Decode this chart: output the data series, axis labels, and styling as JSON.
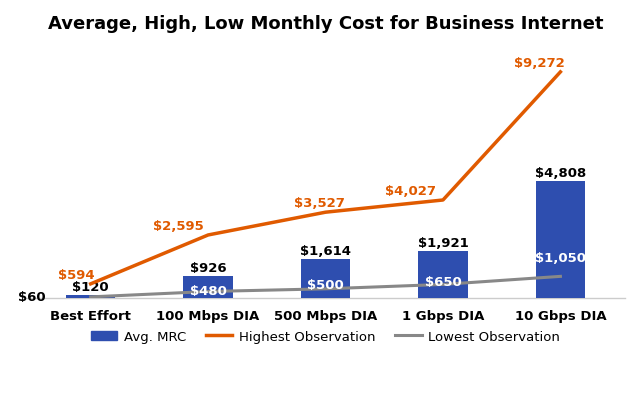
{
  "title": "Average, High, Low Monthly Cost for Business Internet",
  "categories": [
    "Best Effort",
    "100 Mbps DIA",
    "500 Mbps DIA",
    "1 Gbps DIA",
    "10 Gbps DIA"
  ],
  "bar_heights": [
    120,
    926,
    1614,
    1921,
    4808
  ],
  "bar_top_labels": [
    "$120",
    "$926",
    "$1,614",
    "$1,921",
    "$4,808"
  ],
  "bar_inner_labels": [
    "",
    "$480",
    "$500",
    "$650",
    "$1,050"
  ],
  "high_values": [
    594,
    2595,
    3527,
    4027,
    9272
  ],
  "high_labels": [
    "$594",
    "$2,595",
    "$3,527",
    "$4,027",
    "$9,272"
  ],
  "low_values": [
    60,
    280,
    390,
    570,
    900
  ],
  "low_label": "$60",
  "bar_color": "#2E4EAF",
  "high_color": "#E05A00",
  "low_color": "#888888",
  "title_fontsize": 13,
  "label_fontsize": 9.5,
  "inner_label_fontsize": 9.5,
  "legend_bar_label": "Avg. MRC",
  "legend_high_label": "Highest Observation",
  "legend_low_label": "Lowest Observation",
  "ylim": [
    0,
    10500
  ],
  "background_color": "#ffffff"
}
